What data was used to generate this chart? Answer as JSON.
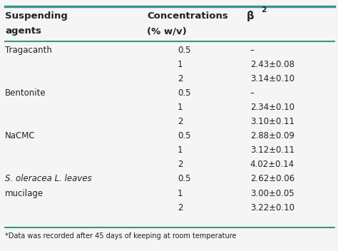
{
  "header_col1_line1": "Suspending",
  "header_col1_line2": "agents",
  "header_col2_line1": "Concentrations",
  "header_col2_line2": "(% w/v)",
  "header_col3": "β",
  "header_col3_sup": "2",
  "rows": [
    [
      "Tragacanth",
      "0.5",
      "–",
      false
    ],
    [
      "",
      "1",
      "2.43±0.08",
      false
    ],
    [
      "",
      "2",
      "3.14±0.10",
      false
    ],
    [
      "Bentonite",
      "0.5",
      "–",
      false
    ],
    [
      "",
      "1",
      "2.34±0.10",
      false
    ],
    [
      "",
      "2",
      "3.10±0.11",
      false
    ],
    [
      "NaCMC",
      "0.5",
      "2.88±0.09",
      false
    ],
    [
      "",
      "1",
      "3.12±0.11",
      false
    ],
    [
      "",
      "2",
      "4.02±0.14",
      false
    ],
    [
      "S. oleracea L. leaves",
      "0.5",
      "2.62±0.06",
      true
    ],
    [
      "mucilage",
      "1",
      "3.00±0.05",
      false
    ],
    [
      "",
      "2",
      "3.22±0.10",
      false
    ]
  ],
  "footnote": "*Data was recorded after 45 days of keeping at room temperature",
  "teal_color": "#3a9688",
  "bg_color": "#f5f5f5",
  "text_color": "#222222",
  "font_size": 8.5,
  "header_font_size": 9.5
}
